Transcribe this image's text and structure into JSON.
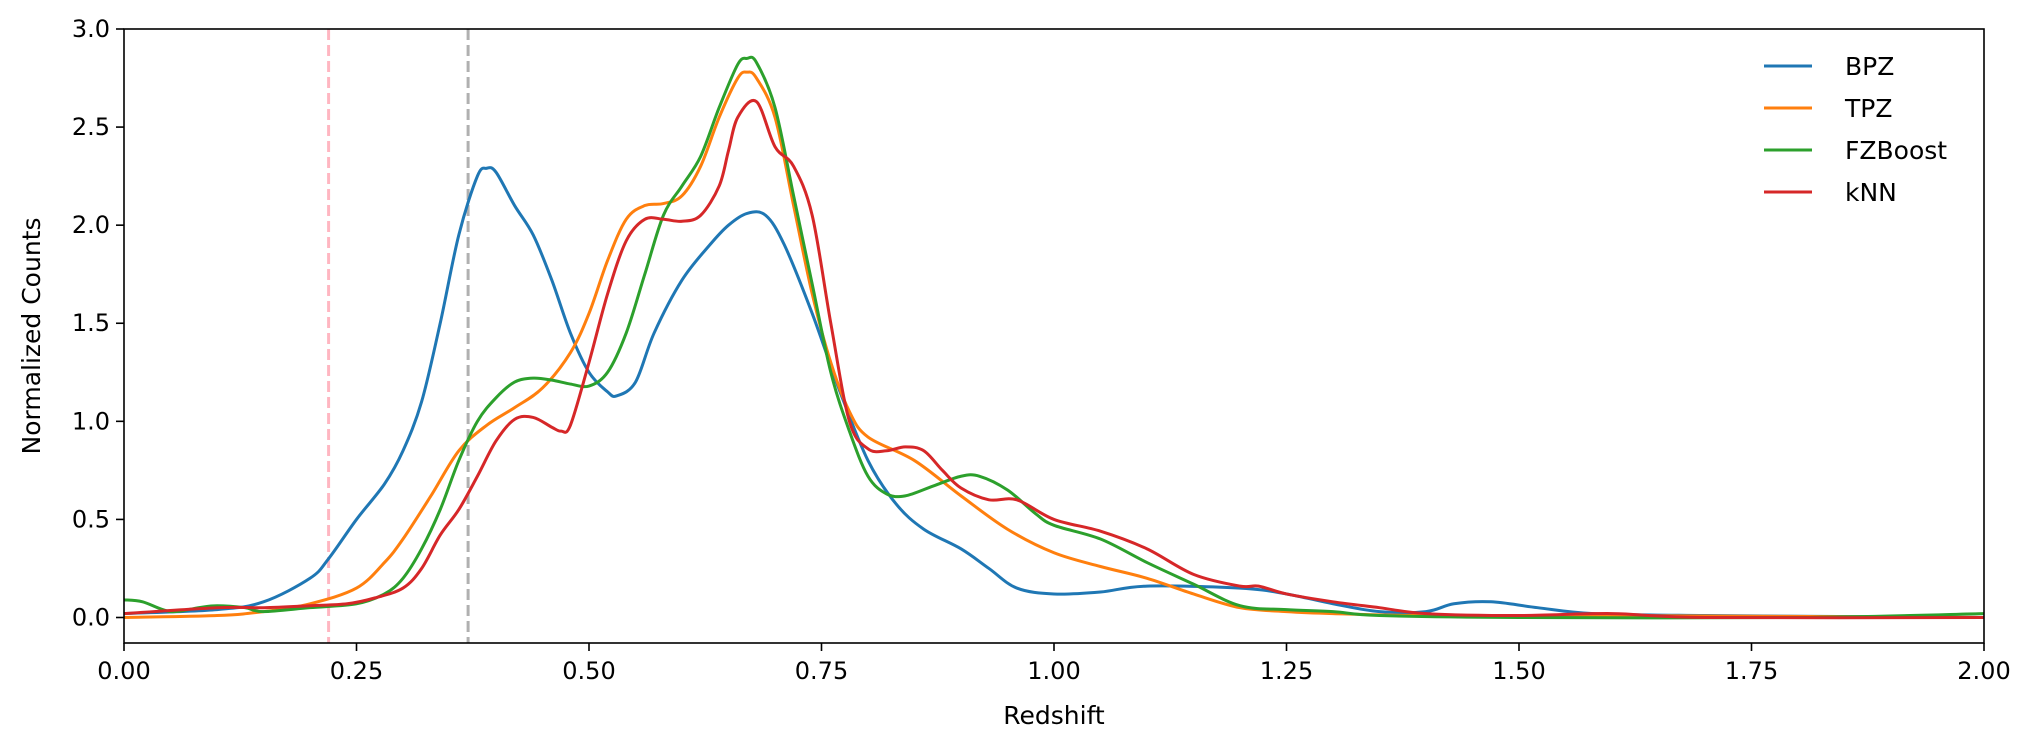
{
  "chart_data": {
    "type": "line",
    "xlabel": "Redshift",
    "ylabel": "Normalized Counts",
    "xlim": [
      0.0,
      2.0
    ],
    "ylim": [
      -0.13,
      3.0
    ],
    "xticks": [
      "0.00",
      "0.25",
      "0.50",
      "0.75",
      "1.00",
      "1.25",
      "1.50",
      "1.75",
      "2.00"
    ],
    "yticks": [
      "0.0",
      "0.5",
      "1.0",
      "1.5",
      "2.0",
      "2.5",
      "3.0"
    ],
    "grid": false,
    "legend_position": "top-right",
    "vlines": [
      {
        "x": 0.22,
        "color": "#ffb6c1",
        "style": "dashed"
      },
      {
        "x": 0.37,
        "color": "#b0b0b0",
        "style": "dashed"
      }
    ],
    "series": [
      {
        "name": "BPZ",
        "color": "#1f77b4",
        "points": [
          [
            0,
            0.02
          ],
          [
            0.1,
            0.04
          ],
          [
            0.15,
            0.08
          ],
          [
            0.2,
            0.2
          ],
          [
            0.22,
            0.3
          ],
          [
            0.25,
            0.5
          ],
          [
            0.28,
            0.68
          ],
          [
            0.3,
            0.85
          ],
          [
            0.32,
            1.1
          ],
          [
            0.34,
            1.5
          ],
          [
            0.36,
            1.95
          ],
          [
            0.38,
            2.25
          ],
          [
            0.39,
            2.29
          ],
          [
            0.4,
            2.27
          ],
          [
            0.42,
            2.1
          ],
          [
            0.44,
            1.95
          ],
          [
            0.46,
            1.72
          ],
          [
            0.48,
            1.45
          ],
          [
            0.5,
            1.25
          ],
          [
            0.52,
            1.15
          ],
          [
            0.53,
            1.13
          ],
          [
            0.55,
            1.2
          ],
          [
            0.57,
            1.45
          ],
          [
            0.6,
            1.72
          ],
          [
            0.63,
            1.9
          ],
          [
            0.65,
            2.0
          ],
          [
            0.67,
            2.06
          ],
          [
            0.69,
            2.05
          ],
          [
            0.71,
            1.9
          ],
          [
            0.74,
            1.55
          ],
          [
            0.77,
            1.15
          ],
          [
            0.8,
            0.8
          ],
          [
            0.83,
            0.58
          ],
          [
            0.86,
            0.45
          ],
          [
            0.9,
            0.35
          ],
          [
            0.93,
            0.25
          ],
          [
            0.96,
            0.15
          ],
          [
            1.0,
            0.12
          ],
          [
            1.05,
            0.13
          ],
          [
            1.1,
            0.16
          ],
          [
            1.2,
            0.15
          ],
          [
            1.25,
            0.12
          ],
          [
            1.3,
            0.07
          ],
          [
            1.35,
            0.03
          ],
          [
            1.4,
            0.03
          ],
          [
            1.43,
            0.07
          ],
          [
            1.47,
            0.08
          ],
          [
            1.52,
            0.05
          ],
          [
            1.58,
            0.02
          ],
          [
            1.7,
            0.01
          ],
          [
            2.0,
            0.0
          ]
        ]
      },
      {
        "name": "TPZ",
        "color": "#ff7f0e",
        "points": [
          [
            0,
            0.0
          ],
          [
            0.1,
            0.01
          ],
          [
            0.15,
            0.03
          ],
          [
            0.2,
            0.07
          ],
          [
            0.25,
            0.15
          ],
          [
            0.28,
            0.28
          ],
          [
            0.3,
            0.4
          ],
          [
            0.33,
            0.62
          ],
          [
            0.36,
            0.85
          ],
          [
            0.39,
            0.98
          ],
          [
            0.42,
            1.07
          ],
          [
            0.45,
            1.17
          ],
          [
            0.48,
            1.35
          ],
          [
            0.5,
            1.55
          ],
          [
            0.52,
            1.82
          ],
          [
            0.54,
            2.03
          ],
          [
            0.56,
            2.1
          ],
          [
            0.58,
            2.11
          ],
          [
            0.6,
            2.15
          ],
          [
            0.62,
            2.3
          ],
          [
            0.64,
            2.55
          ],
          [
            0.66,
            2.75
          ],
          [
            0.67,
            2.78
          ],
          [
            0.68,
            2.75
          ],
          [
            0.7,
            2.55
          ],
          [
            0.72,
            2.1
          ],
          [
            0.74,
            1.65
          ],
          [
            0.76,
            1.3
          ],
          [
            0.78,
            1.05
          ],
          [
            0.8,
            0.92
          ],
          [
            0.85,
            0.8
          ],
          [
            0.9,
            0.62
          ],
          [
            0.95,
            0.45
          ],
          [
            1.0,
            0.33
          ],
          [
            1.05,
            0.26
          ],
          [
            1.1,
            0.2
          ],
          [
            1.15,
            0.12
          ],
          [
            1.2,
            0.05
          ],
          [
            1.25,
            0.03
          ],
          [
            1.3,
            0.02
          ],
          [
            1.4,
            0.01
          ],
          [
            1.6,
            0.01
          ],
          [
            2.0,
            0.0
          ]
        ]
      },
      {
        "name": "FZBoost",
        "color": "#2ca02c",
        "points": [
          [
            0,
            0.09
          ],
          [
            0.02,
            0.08
          ],
          [
            0.05,
            0.03
          ],
          [
            0.08,
            0.05
          ],
          [
            0.1,
            0.06
          ],
          [
            0.13,
            0.05
          ],
          [
            0.15,
            0.03
          ],
          [
            0.2,
            0.05
          ],
          [
            0.25,
            0.07
          ],
          [
            0.28,
            0.12
          ],
          [
            0.3,
            0.2
          ],
          [
            0.32,
            0.35
          ],
          [
            0.34,
            0.55
          ],
          [
            0.36,
            0.8
          ],
          [
            0.38,
            1.0
          ],
          [
            0.4,
            1.12
          ],
          [
            0.42,
            1.2
          ],
          [
            0.44,
            1.22
          ],
          [
            0.46,
            1.21
          ],
          [
            0.48,
            1.19
          ],
          [
            0.5,
            1.18
          ],
          [
            0.52,
            1.25
          ],
          [
            0.54,
            1.45
          ],
          [
            0.56,
            1.75
          ],
          [
            0.58,
            2.05
          ],
          [
            0.6,
            2.2
          ],
          [
            0.62,
            2.35
          ],
          [
            0.64,
            2.6
          ],
          [
            0.66,
            2.82
          ],
          [
            0.67,
            2.85
          ],
          [
            0.68,
            2.83
          ],
          [
            0.7,
            2.6
          ],
          [
            0.72,
            2.15
          ],
          [
            0.74,
            1.7
          ],
          [
            0.76,
            1.25
          ],
          [
            0.78,
            0.95
          ],
          [
            0.8,
            0.72
          ],
          [
            0.82,
            0.63
          ],
          [
            0.84,
            0.62
          ],
          [
            0.87,
            0.67
          ],
          [
            0.9,
            0.72
          ],
          [
            0.92,
            0.72
          ],
          [
            0.95,
            0.65
          ],
          [
            0.98,
            0.53
          ],
          [
            1.0,
            0.47
          ],
          [
            1.05,
            0.4
          ],
          [
            1.1,
            0.28
          ],
          [
            1.15,
            0.17
          ],
          [
            1.2,
            0.06
          ],
          [
            1.25,
            0.04
          ],
          [
            1.3,
            0.03
          ],
          [
            1.35,
            0.01
          ],
          [
            1.5,
            0.0
          ],
          [
            1.8,
            0.0
          ],
          [
            2.0,
            0.02
          ]
        ]
      },
      {
        "name": "kNN",
        "color": "#d62728",
        "points": [
          [
            0,
            0.02
          ],
          [
            0.1,
            0.05
          ],
          [
            0.15,
            0.05
          ],
          [
            0.2,
            0.06
          ],
          [
            0.24,
            0.07
          ],
          [
            0.27,
            0.1
          ],
          [
            0.3,
            0.15
          ],
          [
            0.32,
            0.25
          ],
          [
            0.34,
            0.42
          ],
          [
            0.36,
            0.55
          ],
          [
            0.38,
            0.72
          ],
          [
            0.4,
            0.9
          ],
          [
            0.42,
            1.01
          ],
          [
            0.44,
            1.02
          ],
          [
            0.46,
            0.97
          ],
          [
            0.47,
            0.95
          ],
          [
            0.48,
            0.98
          ],
          [
            0.5,
            1.3
          ],
          [
            0.52,
            1.65
          ],
          [
            0.54,
            1.92
          ],
          [
            0.56,
            2.03
          ],
          [
            0.58,
            2.03
          ],
          [
            0.6,
            2.02
          ],
          [
            0.62,
            2.05
          ],
          [
            0.64,
            2.2
          ],
          [
            0.65,
            2.38
          ],
          [
            0.66,
            2.55
          ],
          [
            0.68,
            2.63
          ],
          [
            0.7,
            2.4
          ],
          [
            0.72,
            2.3
          ],
          [
            0.74,
            2.05
          ],
          [
            0.76,
            1.5
          ],
          [
            0.78,
            1.0
          ],
          [
            0.8,
            0.86
          ],
          [
            0.82,
            0.85
          ],
          [
            0.84,
            0.87
          ],
          [
            0.86,
            0.85
          ],
          [
            0.88,
            0.75
          ],
          [
            0.9,
            0.66
          ],
          [
            0.93,
            0.6
          ],
          [
            0.96,
            0.6
          ],
          [
            1.0,
            0.5
          ],
          [
            1.05,
            0.44
          ],
          [
            1.1,
            0.35
          ],
          [
            1.15,
            0.22
          ],
          [
            1.2,
            0.16
          ],
          [
            1.22,
            0.16
          ],
          [
            1.25,
            0.12
          ],
          [
            1.3,
            0.08
          ],
          [
            1.35,
            0.05
          ],
          [
            1.4,
            0.02
          ],
          [
            1.5,
            0.01
          ],
          [
            1.6,
            0.02
          ],
          [
            1.7,
            0.0
          ],
          [
            2.0,
            0.0
          ]
        ]
      }
    ]
  }
}
